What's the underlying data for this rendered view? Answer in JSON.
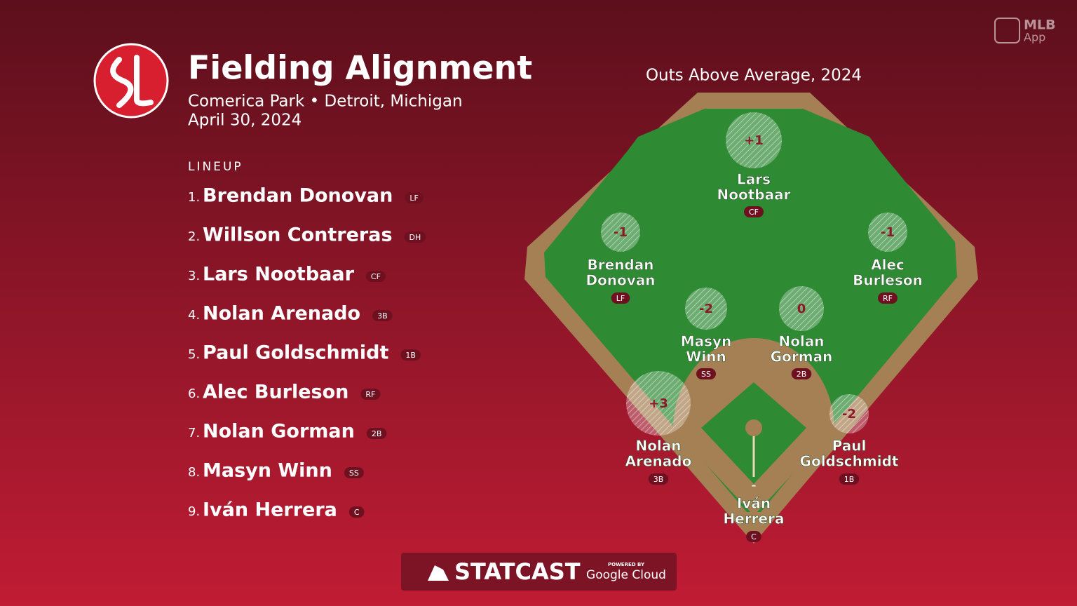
{
  "header": {
    "title": "Fielding Alignment",
    "venue": "Comerica Park • Detroit, Michigan",
    "date": "April 30, 2024"
  },
  "lineup": {
    "label": "LINEUP",
    "players": [
      {
        "order": "1.",
        "name": "Brendan Donovan",
        "pos": "LF"
      },
      {
        "order": "2.",
        "name": "Willson Contreras",
        "pos": "DH"
      },
      {
        "order": "3.",
        "name": "Lars Nootbaar",
        "pos": "CF"
      },
      {
        "order": "4.",
        "name": "Nolan Arenado",
        "pos": "3B"
      },
      {
        "order": "5.",
        "name": "Paul Goldschmidt",
        "pos": "1B"
      },
      {
        "order": "6.",
        "name": "Alec Burleson",
        "pos": "RF"
      },
      {
        "order": "7.",
        "name": "Nolan Gorman",
        "pos": "2B"
      },
      {
        "order": "8.",
        "name": "Masyn Winn",
        "pos": "SS"
      },
      {
        "order": "9.",
        "name": "Iván Herrera",
        "pos": "C"
      }
    ]
  },
  "field": {
    "title": "Outs Above Average, 2024",
    "players": [
      {
        "oaa": "+1",
        "name_lines": [
          "Lars",
          "Nootbaar"
        ],
        "pos": "CF"
      },
      {
        "oaa": "-1",
        "name_lines": [
          "Brendan",
          "Donovan"
        ],
        "pos": "LF"
      },
      {
        "oaa": "-1",
        "name_lines": [
          "Alec",
          "Burleson"
        ],
        "pos": "RF"
      },
      {
        "oaa": "-2",
        "name_lines": [
          "Masyn",
          "Winn"
        ],
        "pos": "SS"
      },
      {
        "oaa": "0",
        "name_lines": [
          "Nolan",
          "Gorman"
        ],
        "pos": "2B"
      },
      {
        "oaa": "+3",
        "name_lines": [
          "Nolan",
          "Arenado"
        ],
        "pos": "3B"
      },
      {
        "oaa": "-2",
        "name_lines": [
          "Paul",
          "Goldschmidt"
        ],
        "pos": "1B"
      },
      {
        "oaa": "–",
        "name_lines": [
          "Iván",
          "Herrera"
        ],
        "pos": "C"
      }
    ]
  },
  "footer": {
    "powered": "POWERED BY",
    "brand": "STATCAST",
    "cloud": "Google Cloud"
  },
  "app": {
    "line1": "MLB",
    "line2": "App"
  }
}
